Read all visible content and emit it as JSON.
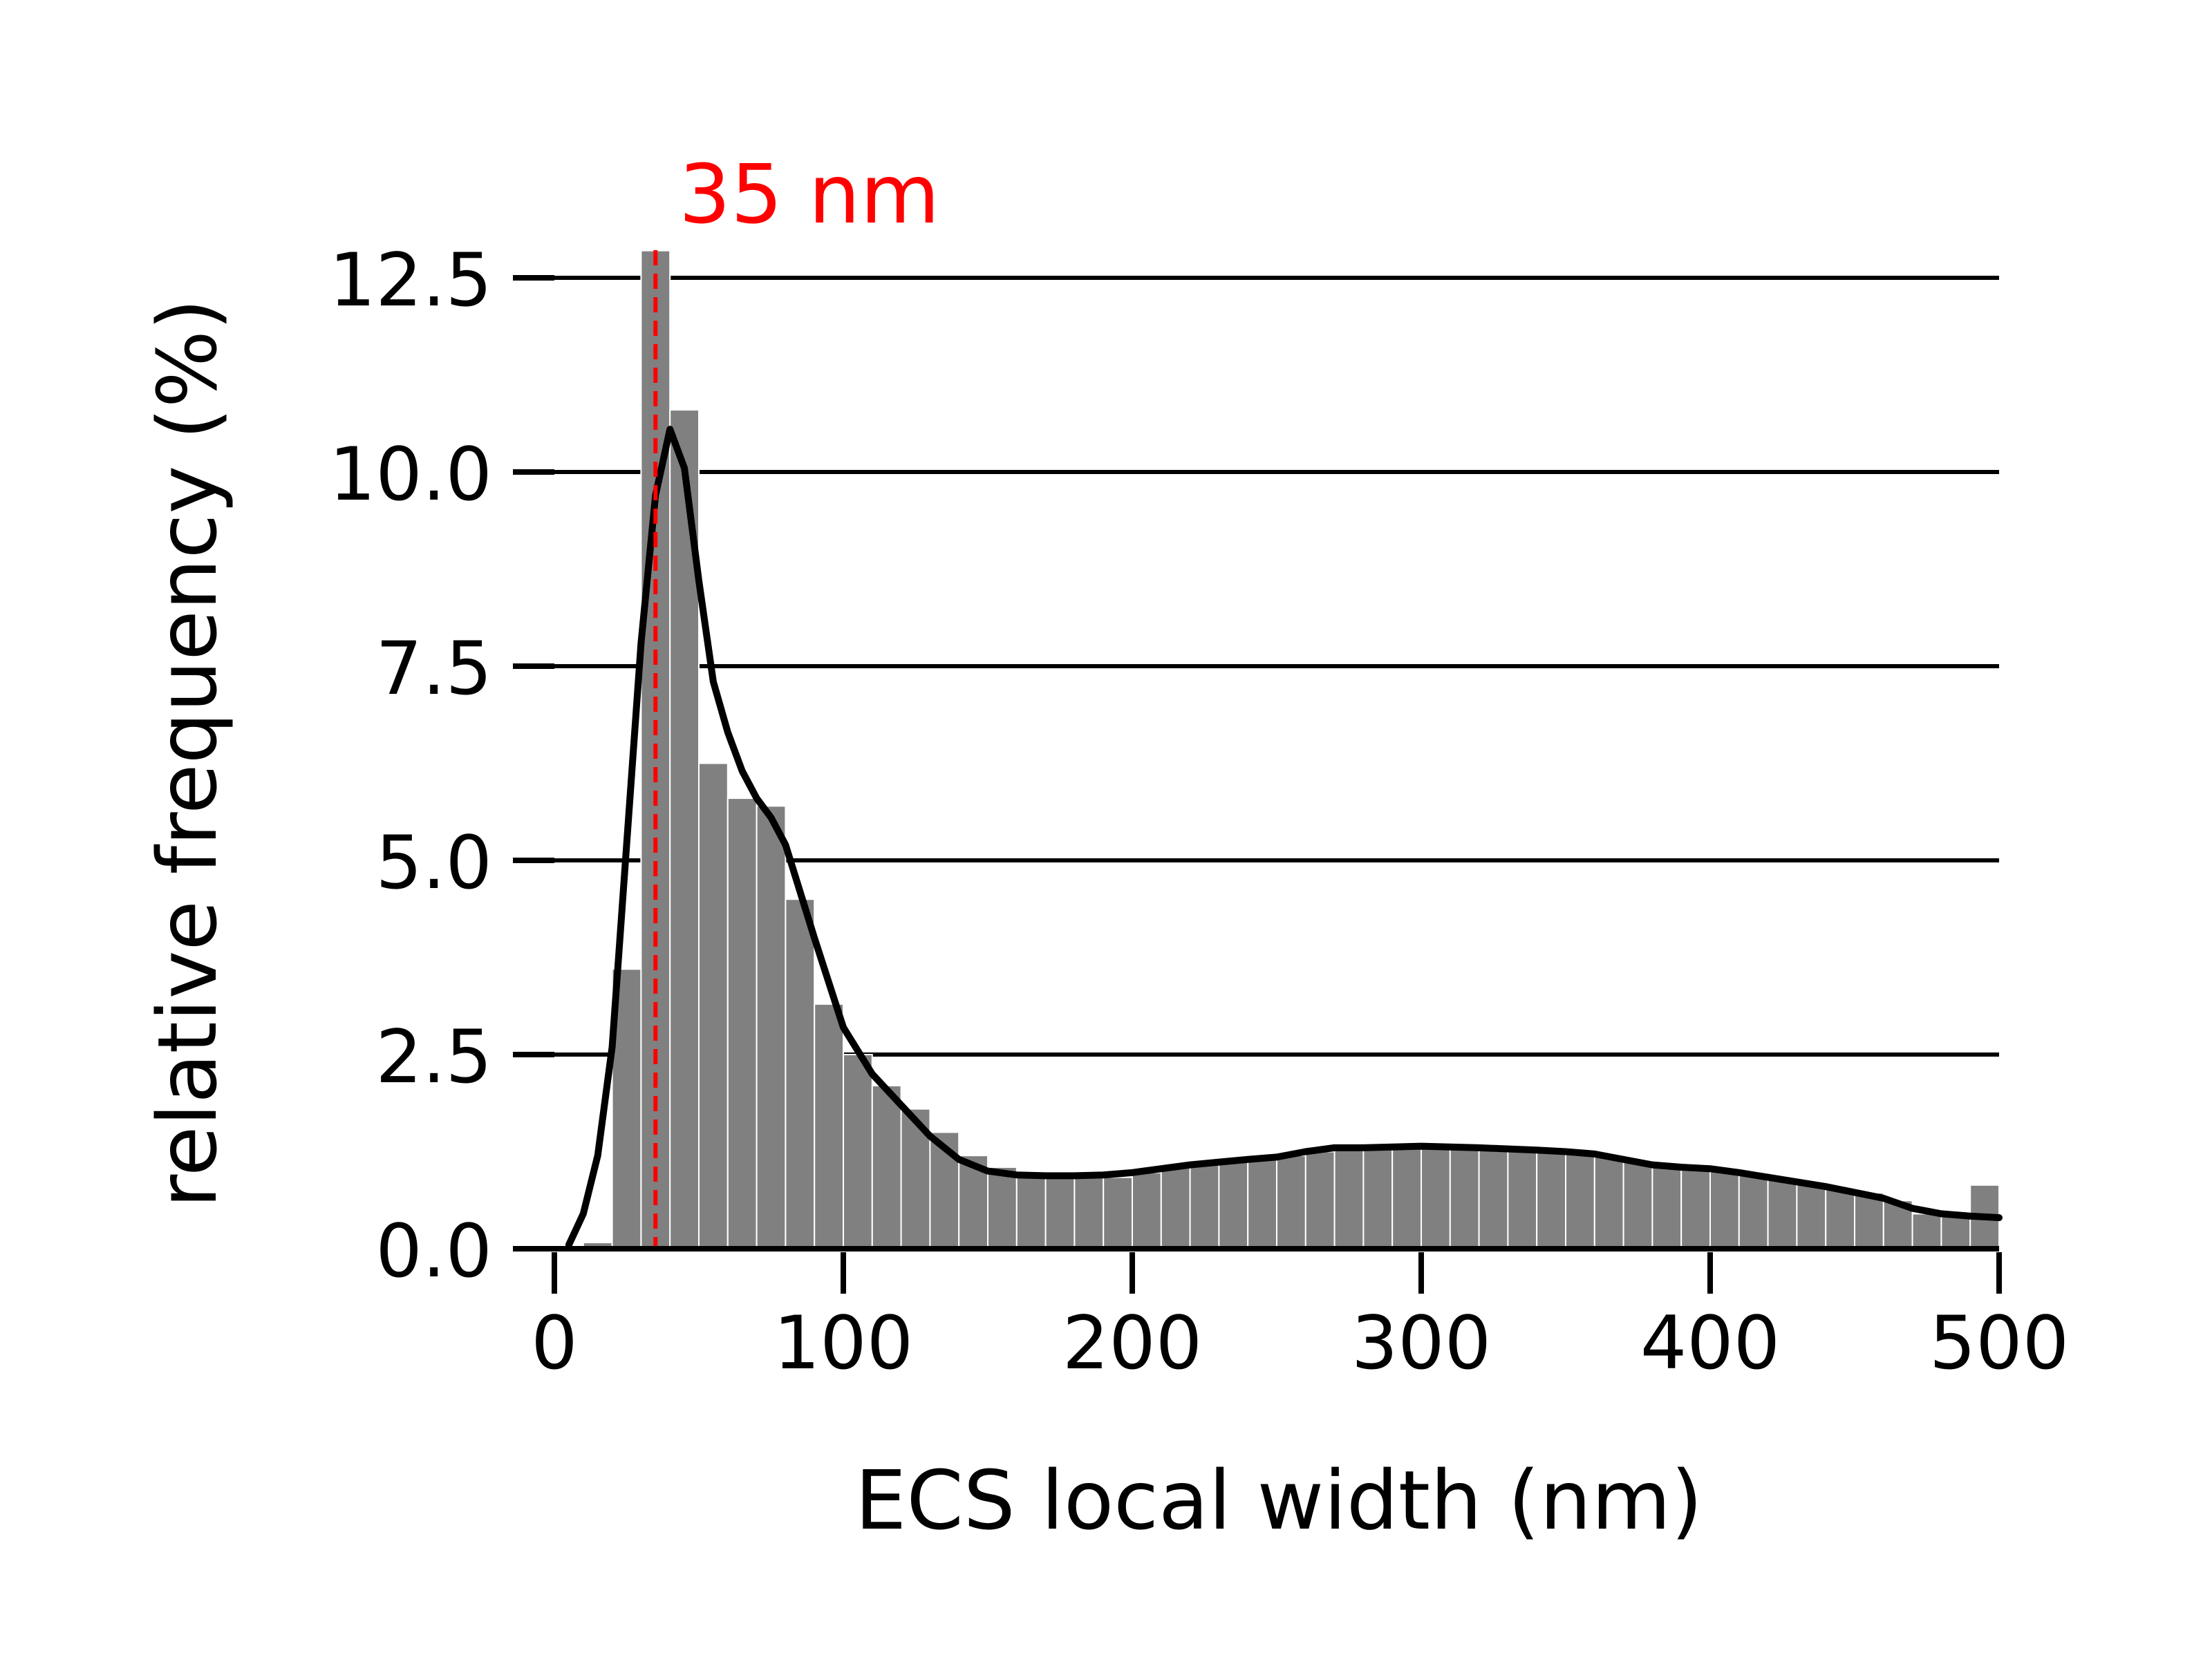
{
  "chart_data": {
    "type": "bar",
    "xlabel": "ECS local width (nm)",
    "ylabel": "relative frequency (%)",
    "xlim": [
      0,
      500
    ],
    "ylim": [
      0,
      12.5
    ],
    "xticks": [
      0,
      100,
      200,
      300,
      400,
      500
    ],
    "yticks": [
      0.0,
      2.5,
      5.0,
      7.5,
      10.0,
      12.5
    ],
    "xtick_labels": [
      "0",
      "100",
      "200",
      "300",
      "400",
      "500"
    ],
    "ytick_labels": [
      "0.0",
      "2.5",
      "5.0",
      "7.5",
      "10.0",
      "12.5"
    ],
    "grid": "horizontal",
    "annotation": {
      "text": "35 nm",
      "x": 35,
      "color": "#ff0000"
    },
    "bar_color": "#808080",
    "line_color": "#000000",
    "bin_width": 10,
    "bins_start": [
      10,
      20,
      30,
      40,
      50,
      60,
      70,
      80,
      90,
      100,
      110,
      120,
      130,
      140,
      150,
      160,
      170,
      180,
      190,
      200,
      210,
      220,
      230,
      240,
      250,
      260,
      270,
      280,
      290,
      300,
      310,
      320,
      330,
      340,
      350,
      360,
      370,
      380,
      390,
      400,
      410,
      420,
      430,
      440,
      450,
      460,
      470,
      480,
      490
    ],
    "values": [
      0.08,
      3.6,
      12.85,
      10.8,
      6.25,
      5.8,
      5.7,
      4.5,
      3.15,
      2.5,
      2.1,
      1.8,
      1.5,
      1.2,
      1.05,
      0.95,
      0.92,
      0.92,
      0.92,
      0.98,
      1.05,
      1.1,
      1.15,
      1.15,
      1.2,
      1.25,
      1.3,
      1.3,
      1.3,
      1.32,
      1.3,
      1.28,
      1.27,
      1.25,
      1.25,
      1.2,
      1.12,
      1.05,
      1.05,
      1.0,
      0.95,
      0.9,
      0.85,
      0.78,
      0.72,
      0.62,
      0.45,
      0.42,
      0.82
    ],
    "kde": {
      "x": [
        5,
        10,
        15,
        20,
        25,
        30,
        35,
        40,
        45,
        50,
        55,
        60,
        65,
        70,
        75,
        80,
        90,
        100,
        110,
        120,
        130,
        140,
        150,
        160,
        170,
        180,
        190,
        200,
        220,
        240,
        250,
        260,
        270,
        280,
        300,
        320,
        340,
        350,
        360,
        370,
        380,
        390,
        400,
        410,
        420,
        440,
        460,
        470,
        480,
        490,
        500
      ],
      "y": [
        0.05,
        0.45,
        1.2,
        2.6,
        5.2,
        7.8,
        9.7,
        10.55,
        10.05,
        8.6,
        7.3,
        6.65,
        6.15,
        5.8,
        5.55,
        5.2,
        4.0,
        2.85,
        2.25,
        1.85,
        1.45,
        1.15,
        1.0,
        0.95,
        0.94,
        0.94,
        0.95,
        0.98,
        1.08,
        1.15,
        1.18,
        1.25,
        1.3,
        1.3,
        1.32,
        1.3,
        1.27,
        1.25,
        1.22,
        1.15,
        1.08,
        1.05,
        1.03,
        0.98,
        0.92,
        0.8,
        0.65,
        0.52,
        0.45,
        0.42,
        0.4
      ]
    }
  }
}
